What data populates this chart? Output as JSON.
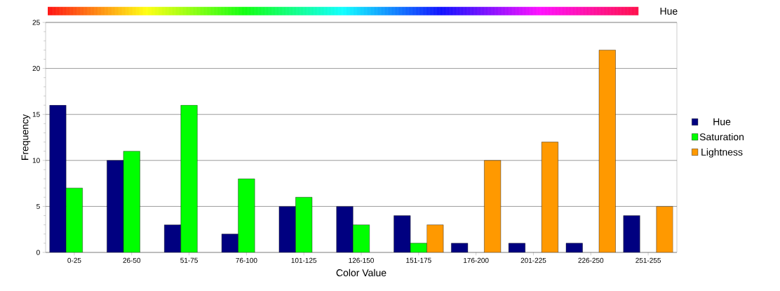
{
  "chart_data": {
    "type": "bar",
    "xlabel": "Color Value",
    "ylabel": "Frequency",
    "annotations": [
      "Hue"
    ],
    "categories": [
      "0-25",
      "26-50",
      "51-75",
      "76-100",
      "101-125",
      "126-150",
      "151-175",
      "176-200",
      "201-225",
      "226-250",
      "251-255"
    ],
    "series": [
      {
        "name": "Hue",
        "color": "#000080",
        "values": [
          16,
          10,
          3,
          2,
          5,
          5,
          4,
          1,
          1,
          1,
          4
        ]
      },
      {
        "name": "Saturation",
        "color": "#00ff00",
        "values": [
          7,
          11,
          16,
          8,
          6,
          3,
          1,
          0,
          0,
          0,
          0
        ]
      },
      {
        "name": "Lightness",
        "color": "#ff9900",
        "values": [
          0,
          0,
          0,
          0,
          0,
          0,
          3,
          10,
          12,
          22,
          5
        ]
      }
    ],
    "ylim": [
      0,
      25
    ],
    "yticks": [
      0,
      5,
      10,
      15,
      20,
      25
    ],
    "grid": "y",
    "legend": "right"
  }
}
